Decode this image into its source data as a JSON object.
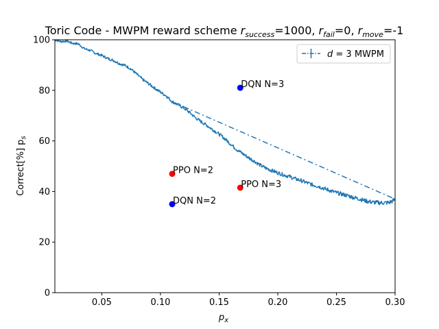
{
  "chart_data": {
    "type": "line",
    "title_parts": {
      "base": "Toric Code - MWPM reward scheme ",
      "r1": "r",
      "r1_sub": "success",
      "r1_val": "=1000, ",
      "r2": "r",
      "r2_sub": "fail",
      "r2_val": "=0, ",
      "r3": "r",
      "r3_sub": "move",
      "r3_val": "=-1"
    },
    "xlabel": "p",
    "xlabel_sub": "x",
    "ylabel": "Correct[%] p",
    "ylabel_sub": "s",
    "xlim": [
      0.01,
      0.3
    ],
    "ylim": [
      0,
      100
    ],
    "xticks": [
      0.05,
      0.1,
      0.15,
      0.2,
      0.25,
      0.3
    ],
    "xtick_labels": [
      "0.05",
      "0.10",
      "0.15",
      "0.20",
      "0.25",
      "0.30"
    ],
    "yticks": [
      0,
      20,
      40,
      60,
      80,
      100
    ],
    "ytick_labels": [
      "0",
      "20",
      "40",
      "60",
      "80",
      "100"
    ],
    "legend": {
      "label_prefix": "d",
      "label_mid": " = 3",
      "label_suffix": " MWPM",
      "loc": "upper right"
    },
    "colors": {
      "line": "#1f77b4",
      "dqn": "#0000ff",
      "ppo": "#ff0000"
    },
    "series": [
      {
        "name": "d = 3 MWPM",
        "style": "dash-dot",
        "x": [
          0.11,
          0.3
        ],
        "y": [
          75.5,
          37
        ]
      },
      {
        "style": "solid-noisy",
        "x": [
          0.01,
          0.015,
          0.02,
          0.025,
          0.03,
          0.035,
          0.04,
          0.045,
          0.05,
          0.055,
          0.06,
          0.065,
          0.07,
          0.075,
          0.08,
          0.085,
          0.09,
          0.095,
          0.1,
          0.105,
          0.11,
          0.115,
          0.12,
          0.125,
          0.13,
          0.135,
          0.14,
          0.145,
          0.15,
          0.155,
          0.16,
          0.165,
          0.17,
          0.175,
          0.18,
          0.185,
          0.19,
          0.195,
          0.2,
          0.205,
          0.21,
          0.215,
          0.22,
          0.225,
          0.23,
          0.235,
          0.24,
          0.245,
          0.25,
          0.255,
          0.26,
          0.265,
          0.27,
          0.275,
          0.28,
          0.285,
          0.29,
          0.295,
          0.3
        ],
        "y": [
          100,
          99.3,
          99.5,
          98.6,
          98.4,
          96.5,
          95.8,
          94.6,
          93.8,
          92.6,
          91.8,
          90.6,
          89.8,
          88.4,
          86.3,
          84.2,
          82.6,
          80.9,
          79.3,
          77.8,
          75.5,
          74.3,
          73.0,
          71.2,
          69.1,
          67.5,
          66.0,
          64.3,
          62.7,
          60.8,
          58.7,
          56.6,
          55.0,
          53.4,
          52.0,
          50.4,
          49.2,
          48.3,
          47.4,
          46.6,
          45.9,
          45.0,
          44.3,
          43.4,
          42.6,
          42.0,
          41.1,
          40.3,
          39.5,
          38.9,
          38.3,
          37.6,
          37.0,
          36.3,
          35.8,
          35.6,
          35.5,
          35.6,
          36.8
        ]
      }
    ],
    "points": [
      {
        "label": "DQN N=3",
        "x": 0.168,
        "y": 81,
        "color": "#0000ff"
      },
      {
        "label": "PPO N=2",
        "x": 0.11,
        "y": 47,
        "color": "#ff0000"
      },
      {
        "label": "PPO N=3",
        "x": 0.168,
        "y": 41.5,
        "color": "#ff0000"
      },
      {
        "label": "DQN N=2",
        "x": 0.11,
        "y": 35,
        "color": "#0000ff"
      }
    ]
  }
}
